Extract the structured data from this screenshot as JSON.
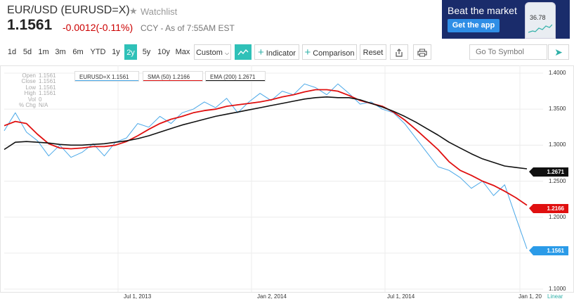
{
  "header": {
    "ticker_name": "EUR/USD (EURUSD=X)",
    "watchlist_label": "Watchlist",
    "price": "1.1561",
    "change": "-0.0012(-0.11%)",
    "as_of": "CCY - As of 7:55AM EST"
  },
  "ad": {
    "title": "Beat the market",
    "button": "Get the app",
    "phone_value": "36.78"
  },
  "toolbar": {
    "ranges": [
      "1d",
      "5d",
      "1m",
      "3m",
      "6m",
      "YTD",
      "1y",
      "2y",
      "5y",
      "10y",
      "Max"
    ],
    "active_range": "2y",
    "custom_label": "Custom",
    "indicator_label": "Indicator",
    "comparison_label": "Comparison",
    "reset_label": "Reset",
    "symbol_placeholder": "Go To Symbol"
  },
  "legend": {
    "series1": "EURUSD=X 1.1561",
    "series2": "SMA (50) 1.2166",
    "series3": "EMA (200) 1.2671"
  },
  "info_panel": [
    {
      "k": "Open",
      "v": "1.1561"
    },
    {
      "k": "Close",
      "v": "1.1561"
    },
    {
      "k": "Low",
      "v": "1.1561"
    },
    {
      "k": "High",
      "v": "1.1561"
    },
    {
      "k": "Vol",
      "v": "0"
    },
    {
      "k": "% Chg",
      "v": "N/A"
    }
  ],
  "axis": {
    "y_ticks": [
      "1.4000",
      "1.3500",
      "1.3000",
      "1.2500",
      "1.2000",
      "1.1500",
      "1.1000"
    ],
    "x_ticks": [
      "Jul 1, 2013",
      "Jan 2, 2014",
      "Jul 1, 2014",
      "Jan 1, 20"
    ],
    "scale_label": "Linear"
  },
  "tags": {
    "ema": "1.2671",
    "sma": "1.2166",
    "price": "1.1561"
  },
  "colors": {
    "price_line": "#4aa8e8",
    "sma_line": "#e01010",
    "ema_line": "#111111",
    "accent": "#2fc1b8",
    "negative": "#cc0000"
  },
  "chart_data": {
    "type": "line",
    "ylim": [
      1.1,
      1.4
    ],
    "x_ticks": [
      "Jul 1, 2013",
      "Jan 2, 2014",
      "Jul 1, 2014",
      "Jan 1, 20"
    ],
    "series": [
      {
        "name": "EURUSD=X",
        "values": [
          1.32,
          1.345,
          1.318,
          1.306,
          1.285,
          1.3,
          1.283,
          1.29,
          1.302,
          1.285,
          1.304,
          1.31,
          1.33,
          1.325,
          1.34,
          1.33,
          1.345,
          1.35,
          1.36,
          1.352,
          1.365,
          1.345,
          1.36,
          1.372,
          1.362,
          1.375,
          1.37,
          1.385,
          1.38,
          1.37,
          1.385,
          1.372,
          1.357,
          1.36,
          1.35,
          1.345,
          1.33,
          1.31,
          1.29,
          1.27,
          1.265,
          1.255,
          1.24,
          1.25,
          1.23,
          1.245,
          1.2,
          1.156
        ]
      },
      {
        "name": "SMA (50)",
        "values": [
          1.327,
          1.333,
          1.33,
          1.315,
          1.302,
          1.296,
          1.295,
          1.296,
          1.298,
          1.298,
          1.3,
          1.305,
          1.313,
          1.322,
          1.33,
          1.336,
          1.34,
          1.345,
          1.348,
          1.35,
          1.354,
          1.356,
          1.358,
          1.36,
          1.363,
          1.367,
          1.37,
          1.374,
          1.377,
          1.377,
          1.375,
          1.369,
          1.362,
          1.358,
          1.354,
          1.346,
          1.335,
          1.322,
          1.308,
          1.294,
          1.277,
          1.265,
          1.258,
          1.25,
          1.244,
          1.236,
          1.227,
          1.2166
        ]
      },
      {
        "name": "EMA (200)",
        "values": [
          1.294,
          1.304,
          1.305,
          1.304,
          1.303,
          1.301,
          1.3,
          1.3,
          1.301,
          1.302,
          1.304,
          1.306,
          1.309,
          1.313,
          1.318,
          1.323,
          1.328,
          1.332,
          1.336,
          1.34,
          1.343,
          1.346,
          1.349,
          1.352,
          1.355,
          1.358,
          1.361,
          1.364,
          1.366,
          1.367,
          1.366,
          1.366,
          1.363,
          1.358,
          1.353,
          1.347,
          1.34,
          1.332,
          1.323,
          1.314,
          1.304,
          1.296,
          1.288,
          1.281,
          1.276,
          1.271,
          1.269,
          1.2671
        ]
      }
    ]
  }
}
